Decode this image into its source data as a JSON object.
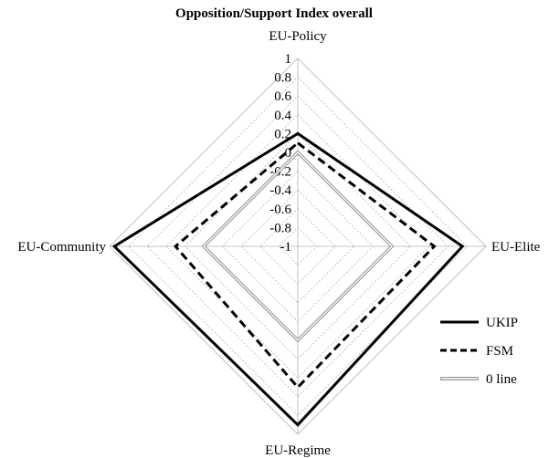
{
  "chart_data": {
    "type": "radar",
    "title": "Opposition/Support Index overall",
    "axes": [
      "EU-Policy",
      "EU-Elite",
      "EU-Regime",
      "EU-Community"
    ],
    "range": [
      -1,
      1
    ],
    "ticks": [
      "1",
      "0.8",
      "0.6",
      "0.4",
      "0.2",
      "0",
      "-0.2",
      "-0.4",
      "-0.6",
      "-0.8",
      "-1"
    ],
    "grid": true,
    "legend_position": "bottom-right",
    "series": [
      {
        "name": "UKIP",
        "values": [
          0.2,
          0.75,
          0.9,
          0.95
        ],
        "style": "solid",
        "color": "#000000"
      },
      {
        "name": "FSM",
        "values": [
          0.1,
          0.45,
          0.5,
          0.3
        ],
        "style": "dashed",
        "color": "#000000"
      },
      {
        "name": "0 line",
        "values": [
          0,
          0,
          0,
          0
        ],
        "style": "double",
        "color": "#999999"
      }
    ]
  }
}
